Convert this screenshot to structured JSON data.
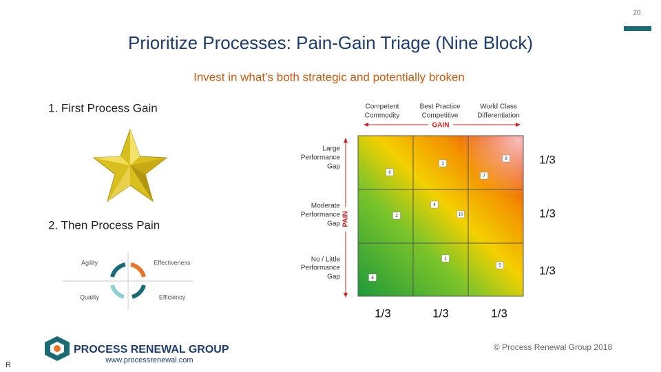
{
  "page_number": "20",
  "header": {
    "title": "Prioritize Processes: Pain-Gain Triage (Nine Block)",
    "subtitle": "Invest in what’s both strategic and potentially broken"
  },
  "steps": [
    "1.  First Process Gain",
    "2.  Then Process Pain"
  ],
  "cycle": [
    "Agility",
    "Effectiveness",
    "Quality",
    "Efficiency"
  ],
  "matrix": {
    "columns": [
      [
        "Competent",
        "Commodity"
      ],
      [
        "Best Practice",
        "Competitive"
      ],
      [
        "World Class",
        "Differentiation"
      ]
    ],
    "x_axis": "GAIN",
    "rows": [
      [
        "Large",
        "Performance",
        "Gap"
      ],
      [
        "Moderate",
        "Performance",
        "Gap"
      ],
      [
        "No / Little",
        "Performance",
        "Gap"
      ]
    ],
    "y_axis": "PAIN",
    "items": [
      "8",
      "3",
      "9",
      "7",
      "4",
      "10",
      "2",
      "1",
      "5",
      "6"
    ],
    "row_fractions": [
      "1/3",
      "1/3",
      "1/3"
    ],
    "column_fractions": [
      "1/3",
      "1/3",
      "1/3"
    ]
  },
  "footer": {
    "logo": "PROCESS RENEWAL GROUP",
    "url": "www.processrenewal.com",
    "copyright": "© Process Renewal Group 2018",
    "corner": "R"
  }
}
